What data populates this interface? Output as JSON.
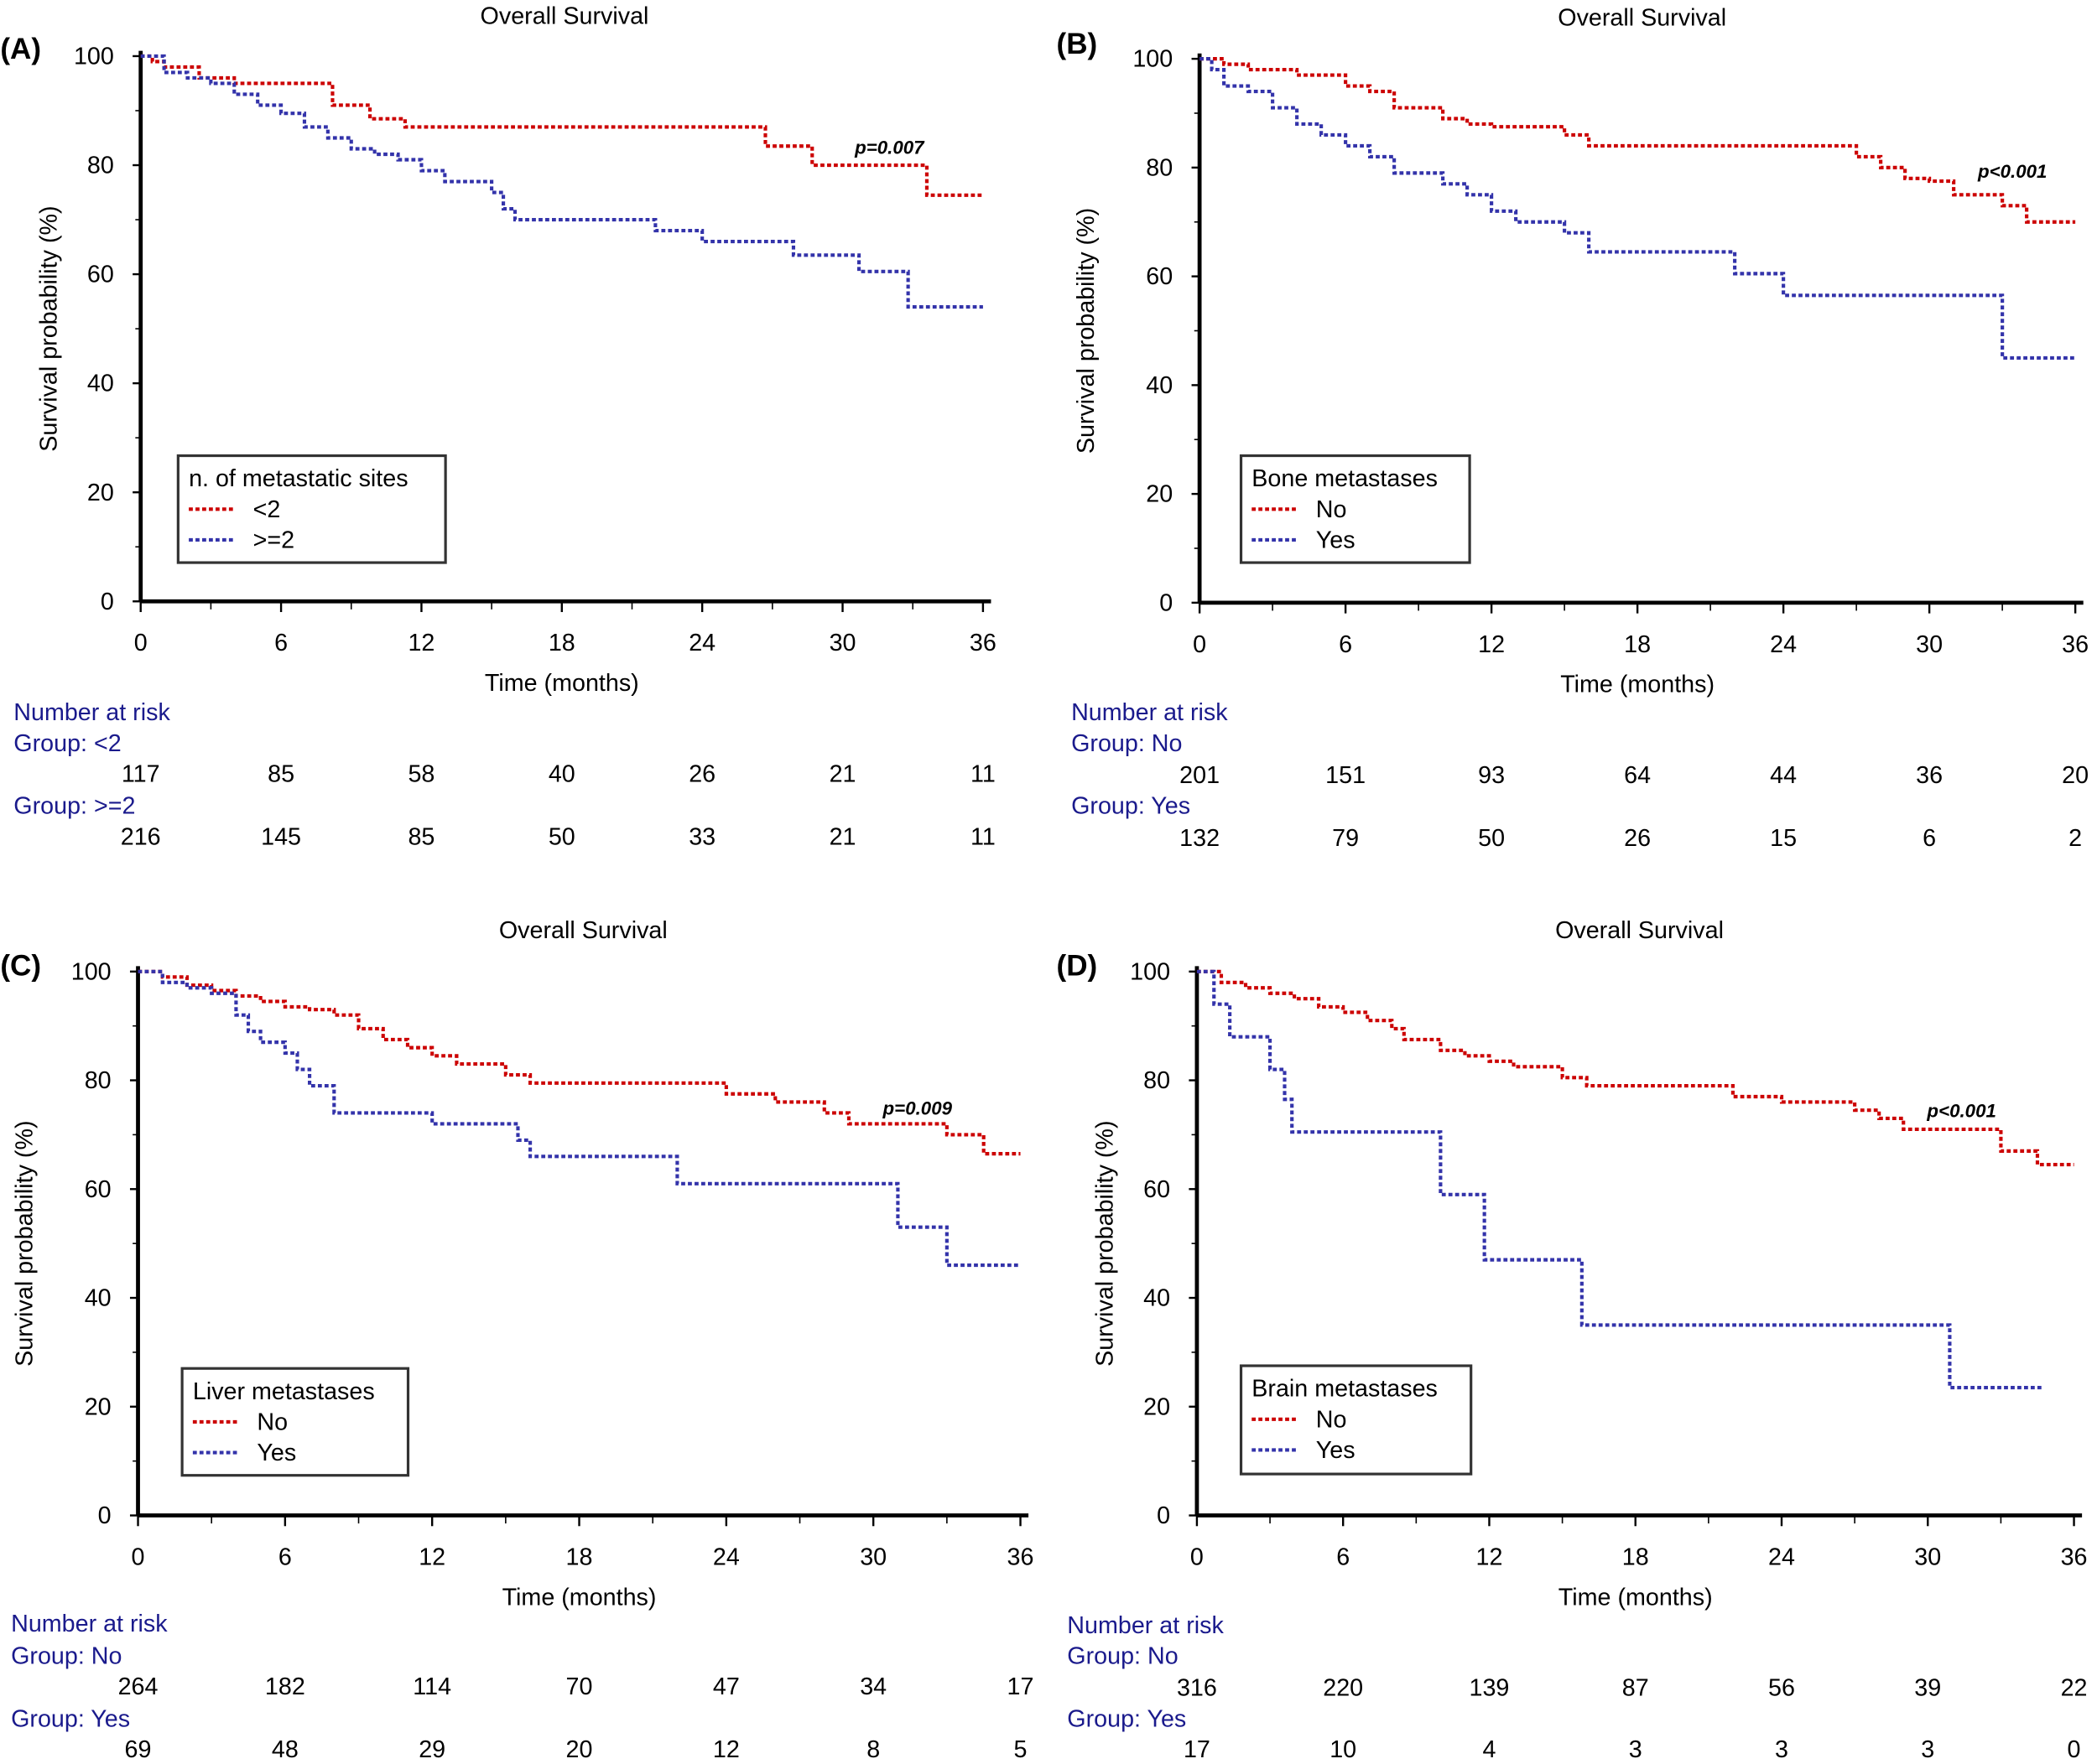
{
  "colors": {
    "group1": "#cc0000",
    "group2": "#3333aa",
    "risk_text": "#1a1a8c"
  },
  "chart_data": [
    {
      "type": "line",
      "panel_label": "(A)",
      "title": "Overall Survival",
      "xlabel": "Time (months)",
      "ylabel": "Survival probability (%)",
      "xlim": [
        0,
        36
      ],
      "ylim": [
        0,
        100
      ],
      "xticks": [
        "0",
        "6",
        "12",
        "18",
        "24",
        "30",
        "36"
      ],
      "yticks": [
        "0",
        "20",
        "40",
        "60",
        "80",
        "100"
      ],
      "legend_title": "n. of metastatic sites",
      "legend_position": "bottom-left",
      "annotation": "p=0.007",
      "series": [
        {
          "name": "<2",
          "points": [
            [
              0,
              100
            ],
            [
              0.5,
              99
            ],
            [
              1,
              98
            ],
            [
              2.5,
              96
            ],
            [
              4,
              95
            ],
            [
              8.2,
              91
            ],
            [
              9.8,
              88.5
            ],
            [
              11.3,
              87
            ],
            [
              26.7,
              83.5
            ],
            [
              28.7,
              80
            ],
            [
              33.6,
              74.5
            ],
            [
              36,
              74.5
            ]
          ]
        },
        {
          "name": ">=2",
          "points": [
            [
              0,
              100
            ],
            [
              1,
              97
            ],
            [
              2,
              96
            ],
            [
              3,
              95
            ],
            [
              4,
              93
            ],
            [
              5,
              91
            ],
            [
              6,
              89.5
            ],
            [
              7,
              87
            ],
            [
              8,
              85
            ],
            [
              9,
              83
            ],
            [
              10,
              82
            ],
            [
              11,
              81
            ],
            [
              12,
              79
            ],
            [
              13,
              77
            ],
            [
              15,
              75
            ],
            [
              15.5,
              72
            ],
            [
              16,
              70
            ],
            [
              22,
              68
            ],
            [
              24,
              66
            ],
            [
              27.9,
              63.5
            ],
            [
              30.7,
              60.5
            ],
            [
              32.8,
              54
            ],
            [
              36,
              54
            ]
          ]
        }
      ],
      "risk_table": {
        "title": "Number at risk",
        "groups": [
          {
            "label": "Group: <2",
            "values": [
              "117",
              "85",
              "58",
              "40",
              "26",
              "21",
              "11"
            ]
          },
          {
            "label": "Group: >=2",
            "values": [
              "216",
              "145",
              "85",
              "50",
              "33",
              "21",
              "11"
            ]
          }
        ]
      }
    },
    {
      "type": "line",
      "panel_label": "(B)",
      "title": "Overall Survival",
      "xlabel": "Time (months)",
      "ylabel": "Survival probability (%)",
      "xlim": [
        0,
        36
      ],
      "ylim": [
        0,
        100
      ],
      "xticks": [
        "0",
        "6",
        "12",
        "18",
        "24",
        "30",
        "36"
      ],
      "yticks": [
        "0",
        "20",
        "40",
        "60",
        "80",
        "100"
      ],
      "legend_title": "Bone metastases",
      "legend_position": "bottom-left",
      "annotation": "p<0.001",
      "series": [
        {
          "name": "No",
          "points": [
            [
              0,
              100
            ],
            [
              1,
              99
            ],
            [
              2,
              98
            ],
            [
              4,
              97
            ],
            [
              6,
              95
            ],
            [
              7,
              94
            ],
            [
              8,
              91
            ],
            [
              10,
              89
            ],
            [
              11,
              88
            ],
            [
              12,
              87.5
            ],
            [
              15,
              86
            ],
            [
              16,
              84
            ],
            [
              27,
              82
            ],
            [
              28,
              80
            ],
            [
              29,
              78
            ],
            [
              30,
              77.5
            ],
            [
              31,
              75
            ],
            [
              33,
              73
            ],
            [
              34,
              70
            ],
            [
              36,
              70
            ]
          ]
        },
        {
          "name": "Yes",
          "points": [
            [
              0,
              100
            ],
            [
              0.5,
              98
            ],
            [
              1,
              95
            ],
            [
              2,
              94
            ],
            [
              3,
              91
            ],
            [
              4,
              88
            ],
            [
              5,
              86
            ],
            [
              6,
              84
            ],
            [
              7,
              82
            ],
            [
              8,
              79
            ],
            [
              10,
              77
            ],
            [
              11,
              75
            ],
            [
              12,
              72
            ],
            [
              13,
              70
            ],
            [
              15,
              68
            ],
            [
              16,
              64.5
            ],
            [
              22,
              60.5
            ],
            [
              24,
              56.5
            ],
            [
              33,
              45
            ],
            [
              36,
              45
            ]
          ]
        }
      ],
      "risk_table": {
        "title": "Number at risk",
        "groups": [
          {
            "label": "Group: No",
            "values": [
              "201",
              "151",
              "93",
              "64",
              "44",
              "36",
              "20"
            ]
          },
          {
            "label": "Group: Yes",
            "values": [
              "132",
              "79",
              "50",
              "26",
              "15",
              "6",
              "2"
            ]
          }
        ]
      }
    },
    {
      "type": "line",
      "panel_label": "(C)",
      "title": "Overall Survival",
      "xlabel": "Time (months)",
      "ylabel": "Survival probability (%)",
      "xlim": [
        0,
        36
      ],
      "ylim": [
        0,
        100
      ],
      "xticks": [
        "0",
        "6",
        "12",
        "18",
        "24",
        "30",
        "36"
      ],
      "yticks": [
        "0",
        "20",
        "40",
        "60",
        "80",
        "100"
      ],
      "legend_title": "Liver metastases",
      "legend_position": "bottom-left",
      "annotation": "p=0.009",
      "series": [
        {
          "name": "No",
          "points": [
            [
              0,
              100
            ],
            [
              1,
              99
            ],
            [
              2,
              97.5
            ],
            [
              3,
              96.5
            ],
            [
              4,
              95.5
            ],
            [
              5,
              94.5
            ],
            [
              6,
              93.5
            ],
            [
              7,
              93
            ],
            [
              8,
              92
            ],
            [
              9,
              89.5
            ],
            [
              10,
              87.5
            ],
            [
              11,
              86
            ],
            [
              12,
              84.5
            ],
            [
              13,
              83
            ],
            [
              15,
              81
            ],
            [
              16,
              79.5
            ],
            [
              24,
              77.5
            ],
            [
              26,
              76
            ],
            [
              28,
              74
            ],
            [
              29,
              72
            ],
            [
              33,
              70
            ],
            [
              34.5,
              66.5
            ],
            [
              36,
              66.5
            ]
          ]
        },
        {
          "name": "Yes",
          "points": [
            [
              0,
              100
            ],
            [
              1,
              98
            ],
            [
              2,
              97
            ],
            [
              3,
              96
            ],
            [
              4,
              92
            ],
            [
              4.5,
              89
            ],
            [
              5,
              87
            ],
            [
              6,
              85
            ],
            [
              6.5,
              82
            ],
            [
              7,
              79
            ],
            [
              8,
              74
            ],
            [
              12,
              72
            ],
            [
              15.5,
              69
            ],
            [
              16,
              66
            ],
            [
              22,
              61
            ],
            [
              31,
              53
            ],
            [
              33,
              46
            ],
            [
              36,
              46
            ]
          ]
        }
      ],
      "risk_table": {
        "title": "Number at risk",
        "groups": [
          {
            "label": "Group: No",
            "values": [
              "264",
              "182",
              "114",
              "70",
              "47",
              "34",
              "17"
            ]
          },
          {
            "label": "Group: Yes",
            "values": [
              "69",
              "48",
              "29",
              "20",
              "12",
              "8",
              "5"
            ]
          }
        ]
      }
    },
    {
      "type": "line",
      "panel_label": "(D)",
      "title": "Overall Survival",
      "xlabel": "Time (months)",
      "ylabel": "Survival probability (%)",
      "xlim": [
        0,
        36
      ],
      "ylim": [
        0,
        100
      ],
      "xticks": [
        "0",
        "6",
        "12",
        "18",
        "24",
        "30",
        "36"
      ],
      "yticks": [
        "0",
        "20",
        "40",
        "60",
        "80",
        "100"
      ],
      "legend_title": "Brain metastases",
      "legend_position": "bottom-left",
      "annotation": "p<0.001",
      "series": [
        {
          "name": "No",
          "points": [
            [
              0,
              100
            ],
            [
              1,
              98
            ],
            [
              2,
              97
            ],
            [
              3,
              96
            ],
            [
              4,
              95
            ],
            [
              5,
              93.5
            ],
            [
              6,
              92.5
            ],
            [
              7,
              91
            ],
            [
              8,
              89.5
            ],
            [
              8.5,
              87.5
            ],
            [
              10,
              85.5
            ],
            [
              11,
              84.5
            ],
            [
              12,
              83.5
            ],
            [
              13,
              82.5
            ],
            [
              15,
              80.5
            ],
            [
              16,
              79
            ],
            [
              22,
              77
            ],
            [
              24,
              76
            ],
            [
              27,
              74.5
            ],
            [
              28,
              73
            ],
            [
              29,
              71
            ],
            [
              33,
              67
            ],
            [
              34.5,
              64.5
            ],
            [
              36,
              64.5
            ]
          ]
        },
        {
          "name": "Yes",
          "points": [
            [
              0,
              100
            ],
            [
              0.7,
              94
            ],
            [
              1.35,
              88
            ],
            [
              3,
              82
            ],
            [
              3.6,
              76.5
            ],
            [
              3.9,
              70.5
            ],
            [
              10,
              59
            ],
            [
              11.8,
              47
            ],
            [
              15.8,
              35
            ],
            [
              30.9,
              23.5
            ],
            [
              34.7,
              23.5
            ]
          ]
        }
      ],
      "risk_table": {
        "title": "Number at risk",
        "groups": [
          {
            "label": "Group: No",
            "values": [
              "316",
              "220",
              "139",
              "87",
              "56",
              "39",
              "22"
            ]
          },
          {
            "label": "Group: Yes",
            "values": [
              "17",
              "10",
              "4",
              "3",
              "3",
              "3",
              "0"
            ]
          }
        ]
      }
    }
  ]
}
